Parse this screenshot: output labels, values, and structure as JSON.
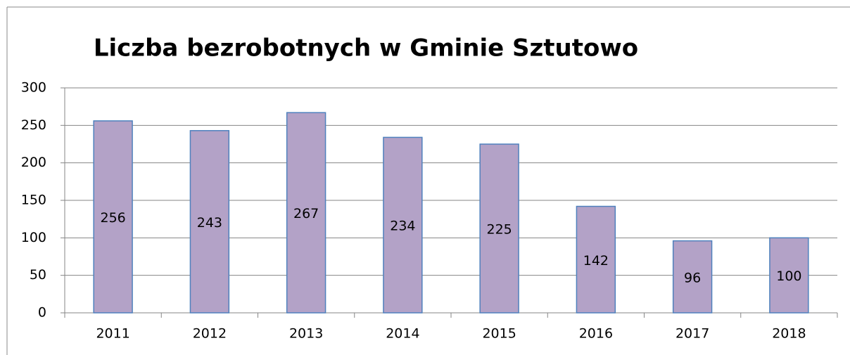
{
  "chart_data": {
    "type": "bar",
    "title": "Liczba bezrobotnych w Gminie Sztutowo",
    "categories": [
      "2011",
      "2012",
      "2013",
      "2014",
      "2015",
      "2016",
      "2017",
      "2018"
    ],
    "values": [
      256,
      243,
      267,
      234,
      225,
      142,
      96,
      100
    ],
    "color": "#b3a2c7",
    "edge_color": "#4f81bd",
    "ylim": [
      0,
      300
    ],
    "yticks": [
      0,
      50,
      100,
      150,
      200,
      250,
      300
    ],
    "grid": true
  }
}
